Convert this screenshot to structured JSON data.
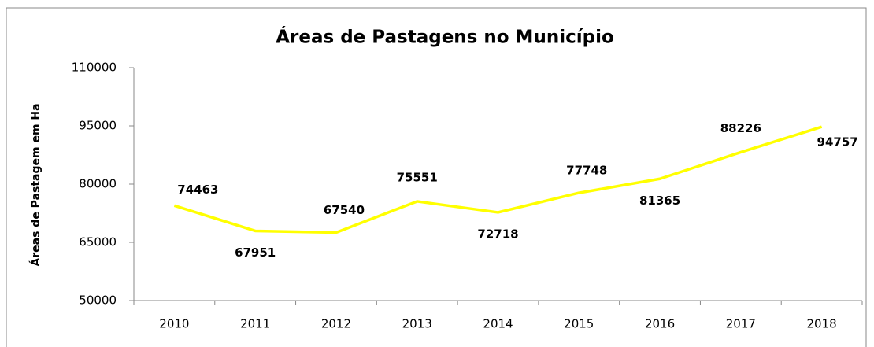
{
  "chart_data": {
    "type": "line",
    "title": "Áreas de Pastagens no Município",
    "ylabel": "Áreas de Pastagem em Ha",
    "categories": [
      "2010",
      "2011",
      "2012",
      "2013",
      "2014",
      "2015",
      "2016",
      "2017",
      "2018"
    ],
    "series": [
      {
        "name": "Áreas de Pastagem",
        "color": "#ffff00",
        "values": [
          74463,
          67951,
          67540,
          75551,
          72718,
          77748,
          81365,
          88226,
          94757
        ]
      }
    ],
    "ylim": [
      50000,
      110000
    ],
    "yticks": [
      50000,
      65000,
      80000,
      95000,
      110000
    ],
    "grid": false
  }
}
